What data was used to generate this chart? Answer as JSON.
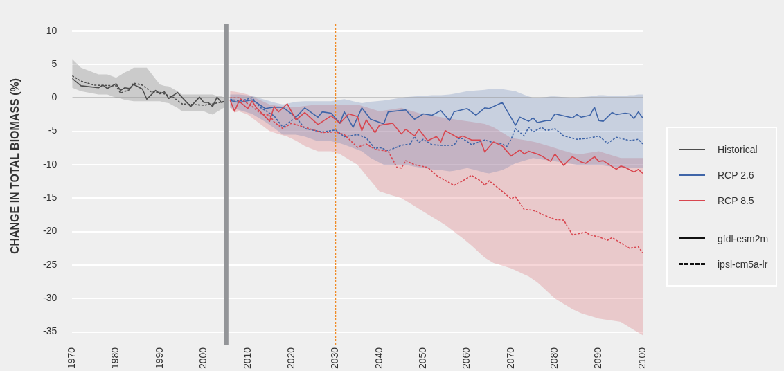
{
  "chart_data": {
    "type": "line",
    "ylabel": "CHANGE IN TOTAL BIOMASS (%)",
    "xlim": [
      1970,
      2100
    ],
    "xticks": [
      1970,
      1980,
      1990,
      2000,
      2010,
      2020,
      2030,
      2040,
      2050,
      2060,
      2070,
      2080,
      2090,
      2100
    ],
    "ylim": [
      -37,
      11
    ],
    "yticks": [
      10,
      5,
      0,
      -5,
      -10,
      -15,
      -20,
      -25,
      -30,
      -35
    ],
    "grid": "y",
    "legend": "right",
    "marker": "none",
    "series": [
      {
        "name": "Historical",
        "color": "#4d4d4d",
        "line_style": "solid",
        "x": [
          1970,
          1972,
          1976,
          1977,
          1978,
          1980,
          1981,
          1982,
          1983,
          1984,
          1986,
          1987,
          1989,
          1990,
          1991,
          1992,
          1994,
          1995,
          1997,
          1999,
          2000,
          2001,
          2002,
          2003,
          2004,
          2005
        ],
        "values": [
          2.9,
          1.8,
          1.5,
          1.9,
          1.4,
          2.1,
          1.1,
          1.5,
          1.4,
          2.0,
          1.3,
          -0.2,
          1.1,
          0.6,
          0.9,
          -0.1,
          0.8,
          0.1,
          -1.3,
          0.1,
          -0.7,
          -0.7,
          -1.3,
          0.1,
          -0.7,
          -0.5
        ],
        "lower": [
          1.5,
          1.0,
          0.5,
          0.5,
          0.5,
          0.0,
          -0.1,
          -0.3,
          -0.4,
          -0.5,
          -0.5,
          -0.5,
          -0.5,
          -0.5,
          -0.7,
          -0.8,
          -1.5,
          -2.0,
          -2.0,
          -2.0,
          -2.0,
          -2.3,
          -2.5,
          -2.1,
          -1.7,
          -1.3
        ],
        "upper": [
          5.8,
          4.5,
          3.5,
          3.5,
          3.5,
          3.0,
          3.4,
          3.8,
          4.1,
          4.5,
          4.5,
          4.5,
          2.8,
          2.0,
          1.8,
          1.7,
          1.0,
          0.5,
          0.5,
          0.5,
          0.5,
          0.5,
          0.5,
          0.3,
          0.2,
          0.0
        ]
      },
      {
        "color": "#4d4d4d",
        "line_style": "dashed",
        "x": [
          1970,
          1972,
          1975,
          1980,
          1981,
          1983,
          1984,
          1986,
          1988,
          1990,
          1993,
          1995,
          2000,
          2002,
          2005
        ],
        "values": [
          3.3,
          2.5,
          1.9,
          1.8,
          0.7,
          1.2,
          2.2,
          1.9,
          0.9,
          0.8,
          0.1,
          -0.9,
          -1.1,
          -0.9,
          -0.5
        ]
      },
      {
        "name": "RCP 8.5",
        "color": "#d8464f",
        "line_style": "solid",
        "x": [
          2006,
          2007,
          2008,
          2010,
          2011,
          2012,
          2015,
          2016,
          2017,
          2019,
          2021,
          2023,
          2026,
          2029,
          2031,
          2033,
          2035,
          2036,
          2037,
          2039,
          2040,
          2043,
          2045,
          2046,
          2048,
          2049,
          2051,
          2053,
          2054,
          2055,
          2058,
          2059,
          2061,
          2063,
          2064,
          2066,
          2068,
          2070,
          2072,
          2073,
          2074,
          2076,
          2077,
          2079,
          2080,
          2082,
          2083,
          2084,
          2086,
          2087,
          2089,
          2090,
          2091,
          2094,
          2095,
          2096,
          2098,
          2099,
          2100
        ],
        "values": [
          -0.4,
          -2.0,
          -0.5,
          -1.6,
          -0.5,
          -1.5,
          -3.5,
          -1.3,
          -2.1,
          -0.9,
          -3.3,
          -2.2,
          -4.0,
          -2.7,
          -3.8,
          -2.4,
          -2.8,
          -4.9,
          -3.3,
          -5.2,
          -4.1,
          -3.8,
          -5.4,
          -4.7,
          -5.7,
          -4.7,
          -6.4,
          -5.8,
          -6.6,
          -4.9,
          -6.0,
          -5.7,
          -6.3,
          -6.3,
          -8.1,
          -6.6,
          -7.2,
          -8.7,
          -7.8,
          -8.4,
          -8.0,
          -8.4,
          -8.7,
          -9.5,
          -8.4,
          -10.1,
          -9.4,
          -8.8,
          -9.6,
          -9.8,
          -8.8,
          -9.5,
          -9.4,
          -10.7,
          -10.2,
          -10.4,
          -11.1,
          -10.7,
          -11.3
        ],
        "lower": [
          -1.5,
          -2.2,
          -2.0,
          -2.5,
          -3.0,
          -3.5,
          -5.0,
          -5.2,
          -5.4,
          -5.8,
          -6.4,
          -7.2,
          -8.0,
          -8.0,
          -8.4,
          -9.2,
          -10.0,
          -10.8,
          -11.6,
          -13.2,
          -14.0,
          -14.6,
          -15.0,
          -15.4,
          -16.2,
          -16.6,
          -17.4,
          -18.2,
          -18.6,
          -19.0,
          -20.5,
          -21.0,
          -22.1,
          -23.3,
          -23.9,
          -24.7,
          -25.1,
          -25.5,
          -26.1,
          -26.4,
          -26.7,
          -27.6,
          -28.2,
          -29.4,
          -30.0,
          -30.8,
          -31.2,
          -31.6,
          -32.2,
          -32.4,
          -32.8,
          -33.0,
          -33.1,
          -33.4,
          -33.5,
          -33.9,
          -34.7,
          -35.1,
          -35.5
        ],
        "upper": [
          1.0,
          0.9,
          0.8,
          0.5,
          0.2,
          -0.1,
          -1.0,
          -1.1,
          -1.2,
          -1.4,
          -1.4,
          -1.2,
          -1.0,
          -1.0,
          -1.0,
          -1.0,
          -1.0,
          -1.2,
          -1.4,
          -1.8,
          -2.0,
          -1.7,
          -1.5,
          -1.7,
          -2.1,
          -2.3,
          -2.6,
          -2.8,
          -2.9,
          -3.0,
          -3.3,
          -3.4,
          -3.6,
          -3.8,
          -3.9,
          -4.4,
          -5.2,
          -6.0,
          -6.2,
          -6.3,
          -6.4,
          -6.7,
          -6.9,
          -7.3,
          -7.5,
          -7.9,
          -8.1,
          -8.3,
          -8.4,
          -8.3,
          -8.1,
          -8.0,
          -8.2,
          -8.8,
          -9.0,
          -9.0,
          -9.0,
          -9.0,
          -9.0
        ]
      },
      {
        "color": "#d8464f",
        "line_style": "dashed",
        "x": [
          2006,
          2008,
          2011,
          2013,
          2015,
          2016,
          2018,
          2020,
          2023,
          2027,
          2030,
          2032,
          2035,
          2037,
          2039,
          2042,
          2044,
          2045,
          2046,
          2048,
          2051,
          2053,
          2057,
          2059,
          2061,
          2063,
          2064,
          2065,
          2068,
          2070,
          2071,
          2073,
          2075,
          2077,
          2080,
          2082,
          2084,
          2087,
          2088,
          2090,
          2092,
          2093,
          2095,
          2097,
          2099,
          2100
        ],
        "values": [
          0.0,
          0.0,
          -1.3,
          -2.4,
          -2.6,
          -3.6,
          -4.6,
          -3.8,
          -4.4,
          -5.2,
          -5.1,
          -5.5,
          -7.4,
          -6.9,
          -7.7,
          -8.0,
          -10.4,
          -10.5,
          -9.4,
          -10.0,
          -10.4,
          -11.6,
          -13.1,
          -12.4,
          -11.6,
          -12.4,
          -13.1,
          -12.4,
          -14.0,
          -15.1,
          -14.8,
          -16.7,
          -16.8,
          -17.4,
          -18.2,
          -18.3,
          -20.5,
          -20.1,
          -20.5,
          -20.8,
          -21.3,
          -20.9,
          -21.7,
          -22.5,
          -22.3,
          -23.2
        ]
      },
      {
        "name": "RCP 2.6",
        "color": "#3f65a8",
        "line_style": "solid",
        "x": [
          2006,
          2008,
          2011,
          2014,
          2016,
          2018,
          2021,
          2023,
          2026,
          2027,
          2029,
          2031,
          2032,
          2034,
          2036,
          2038,
          2041,
          2042,
          2046,
          2048,
          2050,
          2052,
          2054,
          2056,
          2057,
          2060,
          2062,
          2064,
          2065,
          2068,
          2071,
          2072,
          2074,
          2075,
          2076,
          2078,
          2079,
          2080,
          2084,
          2085,
          2086,
          2088,
          2089,
          2090,
          2091,
          2093,
          2094,
          2096,
          2097,
          2098,
          2099,
          2100
        ],
        "values": [
          -0.4,
          -0.7,
          -0.3,
          -1.6,
          -1.4,
          -1.4,
          -2.9,
          -1.5,
          -2.9,
          -2.1,
          -2.3,
          -3.8,
          -2.1,
          -4.4,
          -1.5,
          -3.2,
          -3.9,
          -2.1,
          -1.8,
          -3.2,
          -2.4,
          -2.6,
          -1.9,
          -3.4,
          -2.1,
          -1.6,
          -2.6,
          -1.5,
          -1.6,
          -0.7,
          -4.1,
          -2.9,
          -3.5,
          -3.0,
          -3.7,
          -3.4,
          -3.4,
          -2.4,
          -3.0,
          -2.5,
          -2.9,
          -2.6,
          -1.4,
          -3.4,
          -3.5,
          -2.2,
          -2.5,
          -2.3,
          -2.4,
          -3.1,
          -2.1,
          -3.0
        ],
        "lower": [
          -1.5,
          -1.8,
          -2.4,
          -3.6,
          -4.5,
          -5.5,
          -5.5,
          -5.8,
          -6.5,
          -6.5,
          -6.5,
          -6.8,
          -7.0,
          -7.5,
          -8.0,
          -9.0,
          -10.0,
          -10.0,
          -10.0,
          -10.3,
          -10.5,
          -10.7,
          -10.8,
          -11.0,
          -10.9,
          -10.5,
          -10.8,
          -11.2,
          -11.3,
          -10.8,
          -9.8,
          -9.6,
          -9.2,
          -9.0,
          -9.1,
          -9.3,
          -9.4,
          -9.5,
          -9.9,
          -10.0,
          -10.0,
          -10.0,
          -10.0,
          -10.0,
          -10.1,
          -10.3,
          -10.4,
          -10.5,
          -10.5,
          -10.5,
          -10.5,
          -10.5
        ],
        "upper": [
          0.5,
          0.5,
          0.3,
          -0.3,
          -0.7,
          -1.0,
          -0.6,
          -0.5,
          -0.5,
          -0.5,
          -0.5,
          -0.3,
          -0.2,
          -0.5,
          -0.8,
          -0.6,
          -0.4,
          -0.3,
          0.1,
          0.2,
          0.3,
          0.4,
          0.4,
          0.5,
          0.6,
          1.0,
          1.1,
          1.2,
          1.3,
          1.3,
          1.0,
          0.7,
          0.2,
          0.0,
          0.0,
          0.1,
          0.2,
          0.2,
          0.0,
          0.0,
          0.1,
          0.2,
          0.3,
          0.4,
          0.4,
          0.3,
          0.3,
          0.3,
          0.4,
          0.4,
          0.5,
          0.5
        ]
      },
      {
        "color": "#3f65a8",
        "line_style": "dashed",
        "x": [
          2006,
          2008,
          2011,
          2013,
          2016,
          2018,
          2020,
          2021,
          2023,
          2027,
          2030,
          2032,
          2035,
          2037,
          2039,
          2040,
          2042,
          2045,
          2047,
          2048,
          2049,
          2050,
          2052,
          2054,
          2057,
          2058,
          2059,
          2061,
          2064,
          2066,
          2068,
          2069,
          2070,
          2071,
          2073,
          2074,
          2075,
          2077,
          2078,
          2080,
          2082,
          2085,
          2088,
          2090,
          2092,
          2094,
          2097,
          2099,
          2100
        ],
        "values": [
          -0.2,
          -0.5,
          0.0,
          -1.5,
          -2.7,
          -4.4,
          -3.4,
          -2.9,
          -4.6,
          -5.1,
          -4.8,
          -5.8,
          -5.5,
          -6.0,
          -7.6,
          -7.4,
          -7.9,
          -7.1,
          -6.9,
          -5.8,
          -6.7,
          -6.2,
          -7.0,
          -7.1,
          -7.1,
          -6.1,
          -6.1,
          -7.0,
          -6.3,
          -6.7,
          -6.9,
          -7.3,
          -6.2,
          -4.6,
          -5.7,
          -4.4,
          -5.1,
          -4.4,
          -4.9,
          -4.6,
          -5.7,
          -6.2,
          -6.0,
          -5.7,
          -6.8,
          -5.9,
          -6.4,
          -6.2,
          -6.9
        ]
      }
    ],
    "ref_lines": [
      {
        "axis": "y",
        "value": 0,
        "color": "#8a8a8a",
        "line_style": "solid"
      },
      {
        "axis": "x",
        "value": 2030,
        "color": "#f08a24",
        "line_style": "dashed"
      }
    ],
    "bands": [
      {
        "axis": "x",
        "from": 2004.6,
        "to": 2005.6,
        "color": "#939598"
      }
    ],
    "annotations": [
      "gfdl-esm2m",
      "ipsl-cm5a-lr"
    ]
  }
}
